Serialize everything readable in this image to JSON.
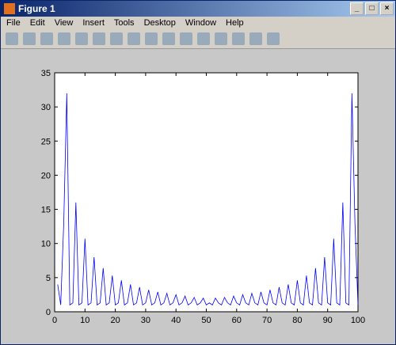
{
  "window": {
    "title": "Figure 1",
    "menu": [
      "File",
      "Edit",
      "View",
      "Insert",
      "Tools",
      "Desktop",
      "Window",
      "Help"
    ]
  },
  "chart_data": {
    "type": "line",
    "color": "#0000ff",
    "x": [
      1,
      2,
      3,
      4,
      5,
      6,
      7,
      8,
      9,
      10,
      11,
      12,
      13,
      14,
      15,
      16,
      17,
      18,
      19,
      20,
      21,
      22,
      23,
      24,
      25,
      26,
      27,
      28,
      29,
      30,
      31,
      32,
      33,
      34,
      35,
      36,
      37,
      38,
      39,
      40,
      41,
      42,
      43,
      44,
      45,
      46,
      47,
      48,
      49,
      50,
      51,
      52,
      53,
      54,
      55,
      56,
      57,
      58,
      59,
      60,
      61,
      62,
      63,
      64,
      65,
      66,
      67,
      68,
      69,
      70,
      71,
      72,
      73,
      74,
      75,
      76,
      77,
      78,
      79,
      80,
      81,
      82,
      83,
      84,
      85,
      86,
      87,
      88,
      89,
      90,
      91,
      92,
      93,
      94,
      95,
      96,
      97,
      98,
      99,
      100
    ],
    "values": [
      4,
      1,
      13,
      32,
      1,
      1.3,
      16,
      1,
      1.3,
      10.7,
      1,
      1.3,
      8,
      1,
      1.3,
      6.4,
      1,
      1.3,
      5.3,
      1,
      1.3,
      4.6,
      1,
      1.3,
      4,
      1,
      1.3,
      3.6,
      1,
      1.3,
      3.2,
      1,
      1.3,
      2.9,
      1,
      1.3,
      2.7,
      1,
      1.3,
      2.5,
      1,
      1.3,
      2.3,
      1,
      1.3,
      2.1,
      1,
      1.3,
      2,
      1,
      1.3,
      1,
      2,
      1.3,
      1,
      2.1,
      1.3,
      1,
      2.3,
      1.3,
      1,
      2.5,
      1.3,
      1,
      2.7,
      1.3,
      1,
      2.9,
      1.3,
      1,
      3.2,
      1.3,
      1,
      3.6,
      1.3,
      1,
      4,
      1.3,
      1,
      4.6,
      1.3,
      1,
      5.3,
      1.3,
      1,
      6.4,
      1.3,
      1,
      8,
      1.3,
      1,
      10.7,
      1.3,
      1,
      16,
      1.3,
      1,
      32,
      13,
      1
    ],
    "xlim": [
      0,
      100
    ],
    "ylim": [
      0,
      35
    ],
    "xticks": [
      0,
      10,
      20,
      30,
      40,
      50,
      60,
      70,
      80,
      90,
      100
    ],
    "yticks": [
      0,
      5,
      10,
      15,
      20,
      25,
      30,
      35
    ]
  }
}
